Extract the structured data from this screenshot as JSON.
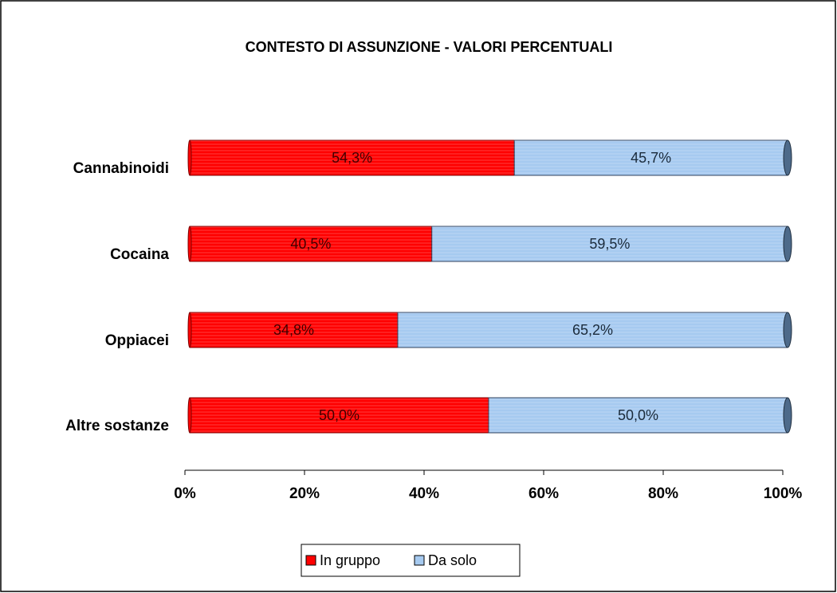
{
  "chart_data": {
    "type": "stacked_bar_horizontal",
    "title": "CONTESTO DI ASSUNZIONE - VALORI PERCENTUALI",
    "categories": [
      "Cannabinoidi",
      "Cocaina",
      "Oppiacei",
      "Altre sostanze"
    ],
    "series": [
      {
        "name": "In gruppo",
        "color": "#ff0000",
        "values": [
          54.3,
          40.5,
          34.8,
          50.0
        ],
        "value_labels": [
          "54,3%",
          "40,5%",
          "34,8%",
          "50,0%"
        ]
      },
      {
        "name": "Da solo",
        "color": "#a6caf0",
        "values": [
          45.7,
          59.5,
          65.2,
          50.0
        ],
        "value_labels": [
          "45,7%",
          "59,5%",
          "65,2%",
          "50,0%"
        ]
      }
    ],
    "xlim": [
      0,
      100
    ],
    "xticks": [
      {
        "value": 0,
        "label": "0%"
      },
      {
        "value": 20,
        "label": "20%"
      },
      {
        "value": 40,
        "label": "40%"
      },
      {
        "value": 60,
        "label": "60%"
      },
      {
        "value": 80,
        "label": "80%"
      },
      {
        "value": 100,
        "label": "100%"
      }
    ],
    "legend": "bottom"
  }
}
